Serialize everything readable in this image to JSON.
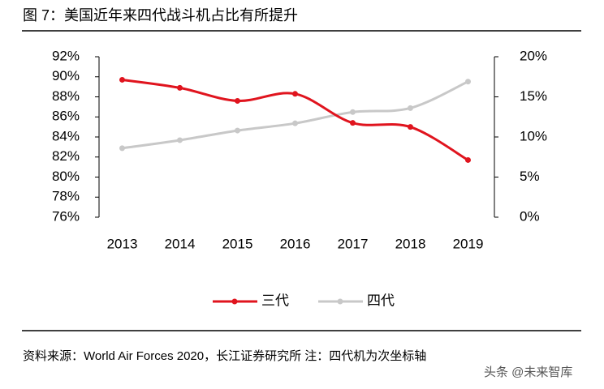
{
  "chart_data": {
    "type": "line",
    "title": "图 7：美国近年来四代战斗机占比有所提升",
    "categories": [
      "2013",
      "2014",
      "2015",
      "2016",
      "2017",
      "2018",
      "2019"
    ],
    "series": [
      {
        "name": "三代",
        "color": "#e0141e",
        "values": [
          89.7,
          88.9,
          87.6,
          88.3,
          85.4,
          85.0,
          81.7
        ]
      },
      {
        "name": "四代",
        "color": "#c8c8c8",
        "axis": "y2",
        "values": [
          8.6,
          9.6,
          10.8,
          11.7,
          13.1,
          13.6,
          16.9
        ]
      }
    ],
    "ylim": [
      76,
      92
    ],
    "yticks": [
      {
        "value": 76,
        "label": "76%"
      },
      {
        "value": 78,
        "label": "78%"
      },
      {
        "value": 80,
        "label": "80%"
      },
      {
        "value": 82,
        "label": "82%"
      },
      {
        "value": 84,
        "label": "84%"
      },
      {
        "value": 86,
        "label": "86%"
      },
      {
        "value": 88,
        "label": "88%"
      },
      {
        "value": 90,
        "label": "90%"
      },
      {
        "value": 92,
        "label": "92%"
      }
    ],
    "y2lim": [
      0,
      20
    ],
    "y2ticks": [
      {
        "value": 0,
        "label": "0%"
      },
      {
        "value": 5,
        "label": "5%"
      },
      {
        "value": 10,
        "label": "10%"
      },
      {
        "value": 15,
        "label": "15%"
      },
      {
        "value": 20,
        "label": "20%"
      }
    ],
    "legend": "bottom",
    "source": "资料来源：World Air Forces 2020，长江证券研究所    注：四代机为次坐标轴",
    "watermark": "头条 @未来智库"
  }
}
